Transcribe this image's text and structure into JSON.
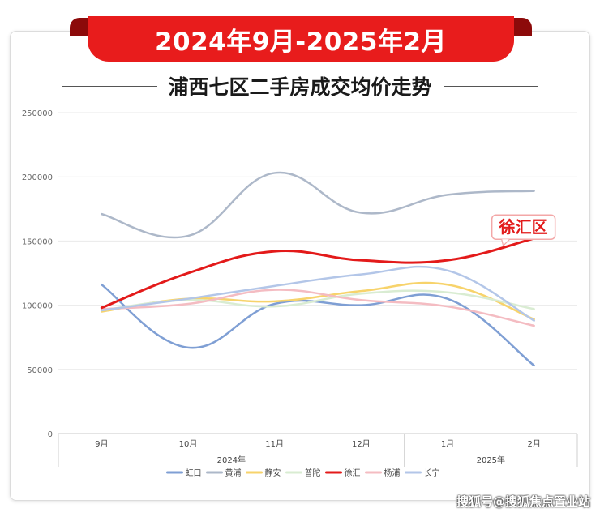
{
  "banner": {
    "title": "2024年9月-2025年2月"
  },
  "header": {
    "subtitle": "浦西七区二手房成交均价走势"
  },
  "watermark": "搜狐号@搜狐焦点置业站",
  "chart_data": {
    "type": "line",
    "title": "浦西七区二手房成交均价走势",
    "categories": [
      "9月",
      "10月",
      "11月",
      "12月",
      "1月",
      "2月"
    ],
    "year_groups": [
      {
        "label": "2024年",
        "categories": [
          "9月",
          "10月",
          "11月",
          "12月"
        ]
      },
      {
        "label": "2025年",
        "categories": [
          "1月",
          "2月"
        ]
      }
    ],
    "ylim": [
      0,
      250000
    ],
    "yticks": [
      0,
      50000,
      100000,
      150000,
      200000,
      250000
    ],
    "ytick_labels": [
      "0",
      "50000",
      "100000",
      "150000",
      "200000",
      "250000"
    ],
    "grid": true,
    "legend_position": "bottom",
    "series": [
      {
        "name": "虹口",
        "color": "#7f9fd4",
        "values": [
          116000,
          67000,
          101000,
          100000,
          105000,
          53000
        ]
      },
      {
        "name": "黄浦",
        "color": "#adb8c9",
        "values": [
          171000,
          154000,
          203000,
          172000,
          186000,
          189000
        ]
      },
      {
        "name": "静安",
        "color": "#f7d36b",
        "values": [
          95000,
          105000,
          103000,
          111000,
          116000,
          89000
        ]
      },
      {
        "name": "普陀",
        "color": "#d9ecd2",
        "values": [
          96000,
          104000,
          99000,
          109000,
          110000,
          97000
        ]
      },
      {
        "name": "徐汇",
        "color": "#e31a1a",
        "values": [
          98000,
          125000,
          142000,
          135000,
          135000,
          152000
        ]
      },
      {
        "name": "杨浦",
        "color": "#f4bcc2",
        "values": [
          97000,
          101000,
          112000,
          104000,
          99000,
          84000
        ]
      },
      {
        "name": "长宁",
        "color": "#b3c6e8",
        "values": [
          96000,
          105000,
          115000,
          124000,
          127000,
          88000
        ]
      }
    ],
    "annotation": {
      "text": "徐汇区",
      "series": "徐汇",
      "category": "2月"
    }
  }
}
